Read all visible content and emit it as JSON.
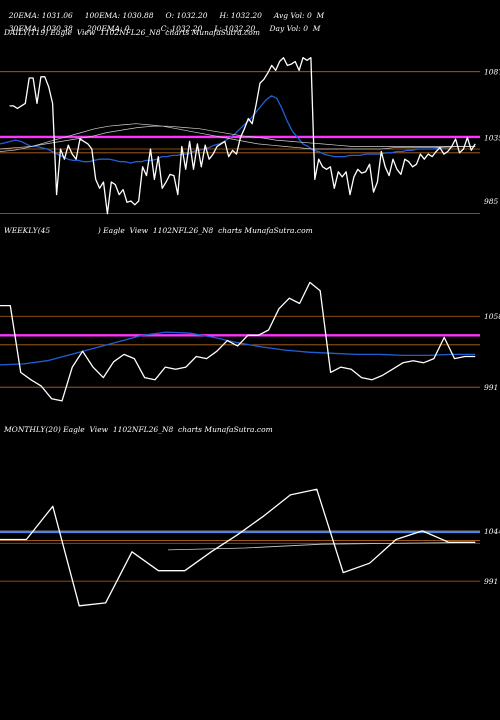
{
  "header": {
    "ema20": "20EMA: 1031.06",
    "ema100": "100EMA: 1030.88",
    "open": "O: 1032.20",
    "high": "H: 1032.20",
    "avg_vol": "Avg Vol: 0  M",
    "ema30": "30EMA: 1030.38",
    "ema200": "200EMA: 0",
    "close": "C: 1032.20",
    "low": "L: 1032.20",
    "day_vol": "Day Vol: 0  M"
  },
  "colors": {
    "price": "#ffffff",
    "ma_blue": "#1f5fd6",
    "level_magenta": "#ff33ff",
    "level_orange": "#b5651d",
    "ma_gray": "#cfcfcf"
  },
  "chart_data": [
    {
      "type": "line",
      "title": "DAILY(119) Eagle  View  1102NFL26_N8  charts MunafaSutra.com",
      "yticks": [
        {
          "label": "1087",
          "v": 1087
        },
        {
          "label": "1035",
          "v": 1035
        },
        {
          "label": "985",
          "v": 985
        }
      ],
      "ylim": [
        970,
        1112
      ],
      "levels": {
        "magenta": 1035.5,
        "orange": [
          1087,
          1026,
          1023,
          975
        ]
      },
      "series": [
        {
          "role": "price",
          "values": [
            1060,
            1060,
            1058,
            1060,
            1062,
            1082,
            1082,
            1062,
            1083,
            1083,
            1075,
            1062,
            990,
            1026,
            1018,
            1029,
            1022,
            1018,
            1034,
            1032,
            1030,
            1026,
            1002,
            995,
            1000,
            975,
            1000,
            998,
            990,
            994,
            984,
            985,
            982,
            985,
            1012,
            1005,
            1026,
            1002,
            1020,
            995,
            1000,
            1006,
            1005,
            990,
            1028,
            1010,
            1032,
            1010,
            1030,
            1012,
            1029,
            1018,
            1022,
            1028,
            1030,
            1032,
            1020,
            1025,
            1022,
            1035,
            1042,
            1050,
            1046,
            1061,
            1078,
            1081,
            1086,
            1092,
            1088,
            1095,
            1098,
            1092,
            1093,
            1095,
            1088,
            1098,
            1096,
            1098,
            1002,
            1018,
            1012,
            1010,
            1012,
            995,
            1008,
            1004,
            1008,
            990,
            1004,
            1010,
            1007,
            1008,
            1014,
            992,
            1000,
            1024,
            1012,
            1005,
            1018,
            1010,
            1006,
            1018,
            1016,
            1012,
            1014,
            1022,
            1018,
            1022,
            1020,
            1024,
            1027,
            1022,
            1024,
            1028,
            1034,
            1023,
            1026,
            1035,
            1025,
            1030
          ]
        },
        {
          "role": "ma",
          "values": [
            1030,
            1031,
            1032,
            1033,
            1032,
            1030,
            1028,
            1028,
            1027,
            1026,
            1024,
            1022,
            1020,
            1018,
            1017,
            1017,
            1016,
            1016,
            1017,
            1018,
            1018,
            1018,
            1017,
            1016,
            1016,
            1015,
            1016,
            1016,
            1017,
            1017,
            1018,
            1020,
            1020,
            1021,
            1021,
            1022,
            1022,
            1024,
            1025,
            1026,
            1027,
            1029,
            1030,
            1032,
            1035,
            1038,
            1042,
            1046,
            1050,
            1055,
            1060,
            1065,
            1068,
            1066,
            1058,
            1048,
            1040,
            1035,
            1030,
            1028,
            1025,
            1024,
            1022,
            1021,
            1020,
            1020,
            1020,
            1021,
            1021,
            1021,
            1022,
            1022,
            1022,
            1022,
            1023,
            1023,
            1024,
            1024,
            1025,
            1025,
            1026,
            1026,
            1026,
            1026,
            1027,
            1027,
            1027,
            1028,
            1028,
            1028,
            1028,
            1028
          ]
        },
        {
          "role": "ma",
          "values": [
            1024,
            1025,
            1027,
            1030,
            1033,
            1036,
            1039,
            1042,
            1044,
            1045,
            1046,
            1045,
            1044,
            1042,
            1040,
            1038,
            1036,
            1034,
            1032,
            1030,
            1029,
            1028,
            1027,
            1026,
            1026,
            1026,
            1026,
            1026,
            1026,
            1027,
            1027,
            1027,
            1027,
            1028,
            1028,
            1028
          ]
        },
        {
          "role": "ma",
          "values": [
            1026,
            1027,
            1028,
            1030,
            1032,
            1034,
            1036,
            1039,
            1041,
            1043,
            1044,
            1044,
            1043,
            1042,
            1040,
            1038,
            1036,
            1035,
            1033,
            1032,
            1031,
            1030,
            1029,
            1028,
            1028,
            1028,
            1028,
            1028,
            1028,
            1028,
            1028,
            1028
          ]
        }
      ]
    },
    {
      "type": "line",
      "title": "WEEKLY(45                    ) Eagle  View  1102NFL26_N8  charts MunafaSutra.com",
      "yticks": [
        {
          "label": "1058",
          "v": 1058
        },
        {
          "label": "991",
          "v": 991
        }
      ],
      "ylim": [
        960,
        1130
      ],
      "levels": {
        "magenta": 1040,
        "orange": [
          1058,
          1031,
          991
        ]
      },
      "series": [
        {
          "role": "price",
          "values": [
            1068,
            1068,
            1005,
            998,
            992,
            980,
            978,
            1010,
            1025,
            1010,
            1000,
            1015,
            1022,
            1018,
            1000,
            998,
            1010,
            1008,
            1010,
            1020,
            1018,
            1025,
            1035,
            1030,
            1040,
            1040,
            1045,
            1065,
            1075,
            1070,
            1090,
            1082,
            1005,
            1010,
            1008,
            1000,
            998,
            1002,
            1008,
            1014,
            1016,
            1014,
            1018,
            1038,
            1018,
            1020,
            1020
          ]
        },
        {
          "role": "ma",
          "values": [
            1012,
            1013,
            1016,
            1022,
            1028,
            1034,
            1040,
            1043,
            1042,
            1038,
            1033,
            1029,
            1026,
            1024,
            1023,
            1022,
            1022,
            1021,
            1021,
            1022,
            1022
          ]
        }
      ]
    },
    {
      "type": "line",
      "title": "MONTHLY(20) Eagle  View  1102NFL26_N8  charts MunafaSutra.com",
      "yticks": [
        {
          "label": "1044",
          "v": 1044
        },
        {
          "label": "991",
          "v": 991
        }
      ],
      "ylim": [
        950,
        1140
      ],
      "levels": {
        "blue": 1043,
        "orange": [
          1044,
          1034,
          1031,
          991
        ]
      },
      "series": [
        {
          "role": "price",
          "values": [
            1035,
            1035,
            1070,
            965,
            968,
            1022,
            1002,
            1002,
            1022,
            1040,
            1060,
            1082,
            1088,
            1000,
            1010,
            1035,
            1044,
            1032,
            1032
          ]
        },
        {
          "role": "ma",
          "values": [
            1024,
            1026,
            1030,
            1031,
            1032
          ]
        }
      ]
    }
  ]
}
